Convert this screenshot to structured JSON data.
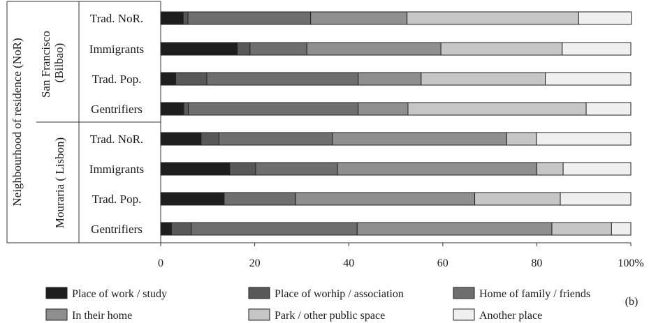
{
  "chart_data": {
    "type": "bar",
    "orientation": "horizontal",
    "stacked": true,
    "y_axis_title": "Neighbourhood of residence (NoR)",
    "groups": [
      {
        "name": "San Francisco\n(Bilbao)",
        "categories": [
          "Trad. NoR.",
          "Immigrants",
          "Trad. Pop.",
          "Gentrifiers"
        ]
      },
      {
        "name": "Mouraria ( Lisbon)",
        "categories": [
          "Trad. NoR.",
          "Immigrants",
          "Trad. Pop.",
          "Gentrifiers"
        ]
      }
    ],
    "rows": [
      "Trad. NoR.",
      "Immigrants",
      "Trad. Pop.",
      "Gentrifiers",
      "Trad. NoR.",
      "Immigrants",
      "Trad. Pop.",
      "Gentrifiers"
    ],
    "series": [
      {
        "name": "Place of work / study",
        "color": "#1e1e1e",
        "values": [
          4.8,
          16.3,
          3.2,
          4.9,
          8.6,
          14.7,
          13.5,
          2.3
        ]
      },
      {
        "name": "Place of worhip / association",
        "color": "#585858",
        "values": [
          1.0,
          2.7,
          6.6,
          1.0,
          3.8,
          5.5,
          0.0,
          4.2
        ]
      },
      {
        "name": "Home of family / friends",
        "color": "#6e6e6e",
        "values": [
          26.1,
          12.1,
          32.2,
          36.1,
          24.1,
          17.4,
          15.2,
          35.3
        ]
      },
      {
        "name": "In their home",
        "color": "#8f8f8f",
        "values": [
          20.5,
          28.5,
          13.4,
          10.6,
          37.1,
          42.4,
          38.1,
          41.4
        ]
      },
      {
        "name": "Park / other public space",
        "color": "#c6c6c6",
        "values": [
          36.5,
          25.8,
          26.4,
          37.9,
          6.3,
          5.6,
          18.2,
          12.7
        ]
      },
      {
        "name": "Another place",
        "color": "#f0f0f0",
        "values": [
          11.2,
          14.6,
          18.2,
          9.5,
          20.1,
          14.4,
          15.0,
          4.1
        ]
      }
    ],
    "xlim": [
      0,
      100
    ],
    "x_ticks": [
      "0",
      "20",
      "40",
      "60",
      "80",
      "100%"
    ],
    "grid": false,
    "legend_position": "bottom",
    "panel_label": "(b)"
  }
}
